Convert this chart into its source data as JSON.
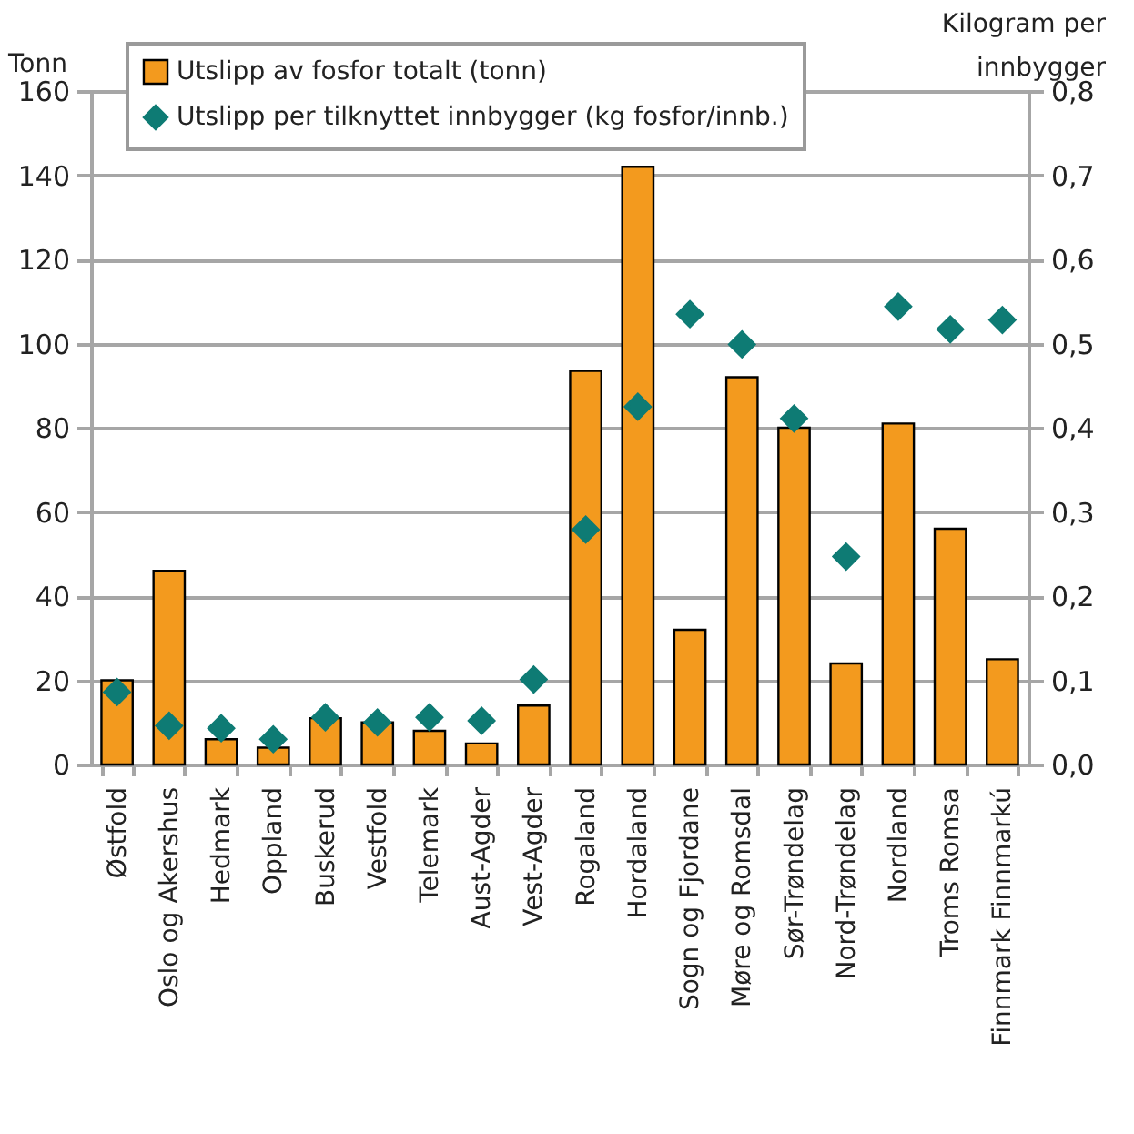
{
  "chart_data": {
    "type": "bar",
    "ylabel": "Tonn",
    "y2label": "Kilogram per innbygger",
    "categories": [
      "Østfold",
      "Oslo og Akershus",
      "Hedmark",
      "Oppland",
      "Buskerud",
      "Vestfold",
      "Telemark",
      "Aust-Agder",
      "Vest-Agder",
      "Rogaland",
      "Hordaland",
      "Sogn og Fjordane",
      "Møre og Romsdal",
      "Sør-Trøndelag",
      "Nord-Trøndelag",
      "Nordland",
      "Troms Romsa",
      "Finnmark Finnmarkú"
    ],
    "series": [
      {
        "name": "Utslipp av fosfor totalt (tonn)",
        "color": "#f39a1e",
        "values": [
          20,
          46,
          6,
          4,
          11,
          10,
          8,
          5,
          14,
          93.5,
          142,
          32,
          92,
          80,
          24,
          81,
          56,
          25
        ]
      },
      {
        "name": "Utslipp per tilknyttet innbygger (kg fosfor/innb.)",
        "type": "scatter",
        "axis": "y2",
        "color": "#0e7b74",
        "values": [
          0.086,
          0.046,
          0.043,
          0.03,
          0.056,
          0.05,
          0.056,
          0.052,
          0.101,
          0.279,
          0.425,
          0.535,
          0.499,
          0.411,
          0.247,
          0.544,
          0.517,
          0.528
        ]
      }
    ],
    "ylim": [
      0,
      160
    ],
    "yticks": [
      0,
      20,
      40,
      60,
      80,
      100,
      120,
      140,
      160
    ],
    "y2lim": [
      0,
      0.8
    ],
    "y2ticks": [
      {
        "value": 0,
        "label": "0,0"
      },
      {
        "value": 0.1,
        "label": "0,1"
      },
      {
        "value": 0.2,
        "label": "0,2"
      },
      {
        "value": 0.3,
        "label": "0,3"
      },
      {
        "value": 0.4,
        "label": "0,4"
      },
      {
        "value": 0.5,
        "label": "0,5"
      },
      {
        "value": 0.6,
        "label": "0,6"
      },
      {
        "value": 0.7,
        "label": "0,7"
      },
      {
        "value": 0.8,
        "label": "0,8"
      }
    ],
    "grid": "y",
    "legend": "top left",
    "marker": "diamond"
  }
}
